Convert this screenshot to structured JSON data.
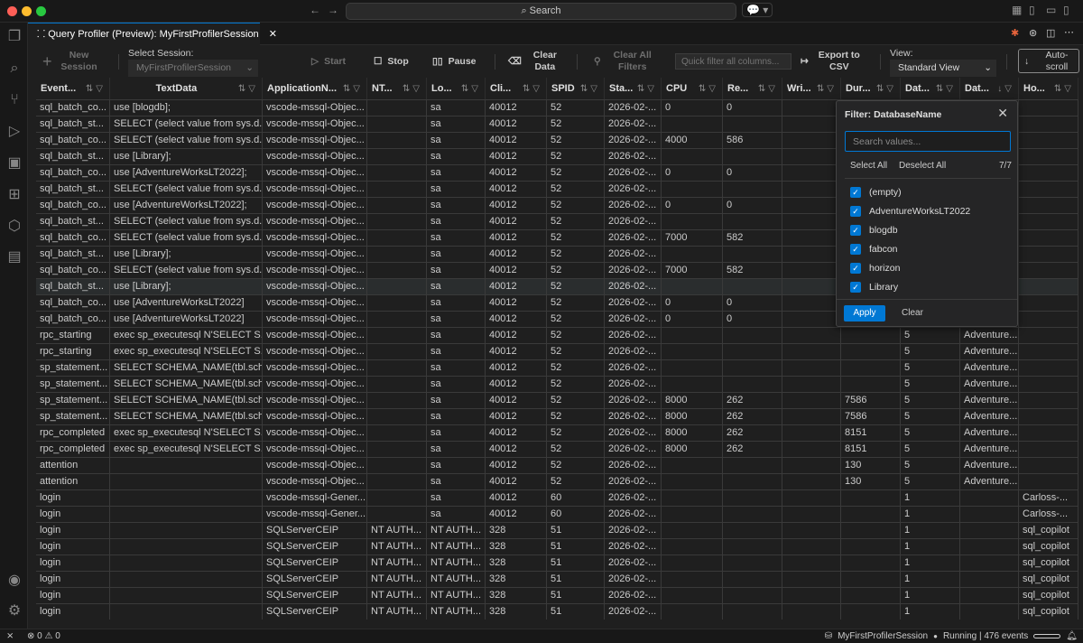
{
  "titlebar": {
    "search_label": "Search"
  },
  "tab": {
    "title": "Query Profiler (Preview): MyFirstProfilerSession"
  },
  "toolbar": {
    "new_session": "New Session",
    "select_session_label": "Select Session:",
    "session_value": "MyFirstProfilerSession",
    "start": "Start",
    "stop": "Stop",
    "pause": "Pause",
    "clear_data": "Clear Data",
    "clear_filters": "Clear All Filters",
    "quick_filter_placeholder": "Quick filter all columns...",
    "export": "Export to CSV",
    "view_label": "View:",
    "view_value": "Standard View",
    "autoscroll": "Auto-scroll"
  },
  "columns": [
    "Event...",
    "TextData",
    "ApplicationN...",
    "NT...",
    "Lo...",
    "Cli...",
    "SPID",
    "Sta...",
    "CPU",
    "Re...",
    "Wri...",
    "Dur...",
    "Dat...",
    "Dat...",
    "Ho..."
  ],
  "sorted_column_index": 13,
  "rows": [
    [
      "sql_batch_co...",
      "use [blogdb];",
      "vscode-mssql-Objec...",
      "",
      "sa",
      "40012",
      "52",
      "2026-02-...",
      "0",
      "0",
      "",
      "",
      "",
      "",
      ""
    ],
    [
      "sql_batch_st...",
      "SELECT (select value from sys.d...",
      "vscode-mssql-Objec...",
      "",
      "sa",
      "40012",
      "52",
      "2026-02-...",
      "",
      "",
      "",
      "",
      "",
      "",
      ""
    ],
    [
      "sql_batch_co...",
      "SELECT (select value from sys.d...",
      "vscode-mssql-Objec...",
      "",
      "sa",
      "40012",
      "52",
      "2026-02-...",
      "4000",
      "586",
      "",
      "",
      "",
      "",
      ""
    ],
    [
      "sql_batch_st...",
      "use [Library];",
      "vscode-mssql-Objec...",
      "",
      "sa",
      "40012",
      "52",
      "2026-02-...",
      "",
      "",
      "",
      "",
      "",
      "",
      ""
    ],
    [
      "sql_batch_co...",
      "use [AdventureWorksLT2022];",
      "vscode-mssql-Objec...",
      "",
      "sa",
      "40012",
      "52",
      "2026-02-...",
      "0",
      "0",
      "",
      "",
      "",
      "",
      ""
    ],
    [
      "sql_batch_st...",
      "SELECT (select value from sys.d...",
      "vscode-mssql-Objec...",
      "",
      "sa",
      "40012",
      "52",
      "2026-02-...",
      "",
      "",
      "",
      "",
      "",
      "",
      ""
    ],
    [
      "sql_batch_co...",
      "use [AdventureWorksLT2022];",
      "vscode-mssql-Objec...",
      "",
      "sa",
      "40012",
      "52",
      "2026-02-...",
      "0",
      "0",
      "",
      "",
      "",
      "",
      ""
    ],
    [
      "sql_batch_st...",
      "SELECT (select value from sys.d...",
      "vscode-mssql-Objec...",
      "",
      "sa",
      "40012",
      "52",
      "2026-02-...",
      "",
      "",
      "",
      "",
      "",
      "",
      ""
    ],
    [
      "sql_batch_co...",
      "SELECT (select value from sys.d...",
      "vscode-mssql-Objec...",
      "",
      "sa",
      "40012",
      "52",
      "2026-02-...",
      "7000",
      "582",
      "",
      "",
      "",
      "",
      ""
    ],
    [
      "sql_batch_st...",
      "use [Library];",
      "vscode-mssql-Objec...",
      "",
      "sa",
      "40012",
      "52",
      "2026-02-...",
      "",
      "",
      "",
      "",
      "",
      "",
      ""
    ],
    [
      "sql_batch_co...",
      "SELECT (select value from sys.d...",
      "vscode-mssql-Objec...",
      "",
      "sa",
      "40012",
      "52",
      "2026-02-...",
      "7000",
      "582",
      "",
      "",
      "",
      "",
      ""
    ],
    [
      "sql_batch_st...",
      "use [Library];",
      "vscode-mssql-Objec...",
      "",
      "sa",
      "40012",
      "52",
      "2026-02-...",
      "",
      "",
      "",
      "",
      "",
      "",
      ""
    ],
    [
      "sql_batch_co...",
      "use [AdventureWorksLT2022]",
      "vscode-mssql-Objec...",
      "",
      "sa",
      "40012",
      "52",
      "2026-02-...",
      "0",
      "0",
      "",
      "",
      "",
      "",
      ""
    ],
    [
      "sql_batch_co...",
      "use [AdventureWorksLT2022]",
      "vscode-mssql-Objec...",
      "",
      "sa",
      "40012",
      "52",
      "2026-02-...",
      "0",
      "0",
      "",
      "",
      "",
      "",
      ""
    ],
    [
      "rpc_starting",
      "exec sp_executesql N'SELECT S...",
      "vscode-mssql-Objec...",
      "",
      "sa",
      "40012",
      "52",
      "2026-02-...",
      "",
      "",
      "",
      "",
      "5",
      "Adventure...",
      ""
    ],
    [
      "rpc_starting",
      "exec sp_executesql N'SELECT S...",
      "vscode-mssql-Objec...",
      "",
      "sa",
      "40012",
      "52",
      "2026-02-...",
      "",
      "",
      "",
      "",
      "5",
      "Adventure...",
      ""
    ],
    [
      "sp_statement...",
      "SELECT SCHEMA_NAME(tbl.sch...",
      "vscode-mssql-Objec...",
      "",
      "sa",
      "40012",
      "52",
      "2026-02-...",
      "",
      "",
      "",
      "",
      "5",
      "Adventure...",
      ""
    ],
    [
      "sp_statement...",
      "SELECT SCHEMA_NAME(tbl.sch...",
      "vscode-mssql-Objec...",
      "",
      "sa",
      "40012",
      "52",
      "2026-02-...",
      "",
      "",
      "",
      "",
      "5",
      "Adventure...",
      ""
    ],
    [
      "sp_statement...",
      "SELECT SCHEMA_NAME(tbl.sch...",
      "vscode-mssql-Objec...",
      "",
      "sa",
      "40012",
      "52",
      "2026-02-...",
      "8000",
      "262",
      "",
      "7586",
      "5",
      "Adventure...",
      ""
    ],
    [
      "sp_statement...",
      "SELECT SCHEMA_NAME(tbl.sch...",
      "vscode-mssql-Objec...",
      "",
      "sa",
      "40012",
      "52",
      "2026-02-...",
      "8000",
      "262",
      "",
      "7586",
      "5",
      "Adventure...",
      ""
    ],
    [
      "rpc_completed",
      "exec sp_executesql N'SELECT S...",
      "vscode-mssql-Objec...",
      "",
      "sa",
      "40012",
      "52",
      "2026-02-...",
      "8000",
      "262",
      "",
      "8151",
      "5",
      "Adventure...",
      ""
    ],
    [
      "rpc_completed",
      "exec sp_executesql N'SELECT S...",
      "vscode-mssql-Objec...",
      "",
      "sa",
      "40012",
      "52",
      "2026-02-...",
      "8000",
      "262",
      "",
      "8151",
      "5",
      "Adventure...",
      ""
    ],
    [
      "attention",
      "",
      "vscode-mssql-Objec...",
      "",
      "sa",
      "40012",
      "52",
      "2026-02-...",
      "",
      "",
      "",
      "130",
      "5",
      "Adventure...",
      ""
    ],
    [
      "attention",
      "",
      "vscode-mssql-Objec...",
      "",
      "sa",
      "40012",
      "52",
      "2026-02-...",
      "",
      "",
      "",
      "130",
      "5",
      "Adventure...",
      ""
    ],
    [
      "login",
      "",
      "vscode-mssql-Gener...",
      "",
      "sa",
      "40012",
      "60",
      "2026-02-...",
      "",
      "",
      "",
      "",
      "1",
      "",
      "Carloss-..."
    ],
    [
      "login",
      "",
      "vscode-mssql-Gener...",
      "",
      "sa",
      "40012",
      "60",
      "2026-02-...",
      "",
      "",
      "",
      "",
      "1",
      "",
      "Carloss-..."
    ],
    [
      "login",
      "",
      "SQLServerCEIP",
      "NT AUTH...",
      "NT AUTH...",
      "328",
      "51",
      "2026-02-...",
      "",
      "",
      "",
      "",
      "1",
      "",
      "sql_copilot"
    ],
    [
      "login",
      "",
      "SQLServerCEIP",
      "NT AUTH...",
      "NT AUTH...",
      "328",
      "51",
      "2026-02-...",
      "",
      "",
      "",
      "",
      "1",
      "",
      "sql_copilot"
    ],
    [
      "login",
      "",
      "SQLServerCEIP",
      "NT AUTH...",
      "NT AUTH...",
      "328",
      "51",
      "2026-02-...",
      "",
      "",
      "",
      "",
      "1",
      "",
      "sql_copilot"
    ],
    [
      "login",
      "",
      "SQLServerCEIP",
      "NT AUTH...",
      "NT AUTH...",
      "328",
      "51",
      "2026-02-...",
      "",
      "",
      "",
      "",
      "1",
      "",
      "sql_copilot"
    ],
    [
      "login",
      "",
      "SQLServerCEIP",
      "NT AUTH...",
      "NT AUTH...",
      "328",
      "51",
      "2026-02-...",
      "",
      "",
      "",
      "",
      "1",
      "",
      "sql_copilot"
    ],
    [
      "login",
      "",
      "SQLServerCEIP",
      "NT AUTH...",
      "NT AUTH...",
      "328",
      "51",
      "2026-02-...",
      "",
      "",
      "",
      "",
      "1",
      "",
      "sql_copilot"
    ]
  ],
  "selected_row_index": 11,
  "filter_popup": {
    "title": "Filter: DatabaseName",
    "search_placeholder": "Search values...",
    "select_all": "Select All",
    "deselect_all": "Deselect All",
    "count": "7/7",
    "options": [
      {
        "label": "(empty)",
        "checked": true
      },
      {
        "label": "AdventureWorksLT2022",
        "checked": true
      },
      {
        "label": "blogdb",
        "checked": true
      },
      {
        "label": "fabcon",
        "checked": true
      },
      {
        "label": "horizon",
        "checked": true
      },
      {
        "label": "Library",
        "checked": true
      }
    ],
    "apply": "Apply",
    "clear": "Clear"
  },
  "status": {
    "errors": "0",
    "warnings": "0",
    "session": "MyFirstProfilerSession",
    "state": "Running | 476 events"
  },
  "colors": {
    "accent": "#0078d4",
    "background": "#1f1f1f",
    "sidebar": "#181818"
  }
}
